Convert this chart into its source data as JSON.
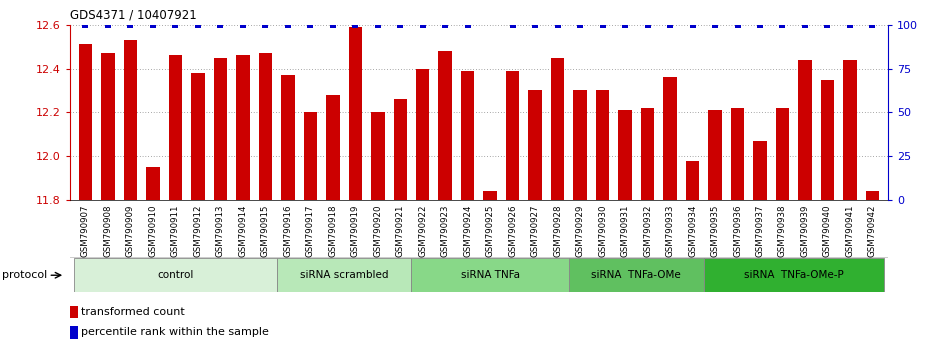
{
  "title": "GDS4371 / 10407921",
  "samples": [
    "GSM790907",
    "GSM790908",
    "GSM790909",
    "GSM790910",
    "GSM790911",
    "GSM790912",
    "GSM790913",
    "GSM790914",
    "GSM790915",
    "GSM790916",
    "GSM790917",
    "GSM790918",
    "GSM790919",
    "GSM790920",
    "GSM790921",
    "GSM790922",
    "GSM790923",
    "GSM790924",
    "GSM790925",
    "GSM790926",
    "GSM790927",
    "GSM790928",
    "GSM790929",
    "GSM790930",
    "GSM790931",
    "GSM790932",
    "GSM790933",
    "GSM790934",
    "GSM790935",
    "GSM790936",
    "GSM790937",
    "GSM790938",
    "GSM790939",
    "GSM790940",
    "GSM790941",
    "GSM790942"
  ],
  "bar_values": [
    12.51,
    12.47,
    12.53,
    11.95,
    12.46,
    12.38,
    12.45,
    12.46,
    12.47,
    12.37,
    12.2,
    12.28,
    12.59,
    12.2,
    12.26,
    12.4,
    12.48,
    12.39,
    11.84,
    12.39,
    12.3,
    12.45,
    12.3,
    12.3,
    12.21,
    12.22,
    12.36,
    11.98,
    12.21,
    12.22,
    12.07,
    12.22,
    12.44,
    12.35,
    12.44,
    11.84
  ],
  "percentile_display": [
    true,
    true,
    true,
    true,
    true,
    true,
    true,
    true,
    true,
    true,
    true,
    true,
    true,
    true,
    true,
    true,
    true,
    true,
    false,
    true,
    true,
    true,
    true,
    true,
    true,
    true,
    true,
    true,
    true,
    true,
    true,
    true,
    true,
    true,
    true,
    true
  ],
  "groups": [
    {
      "label": "control",
      "start": 0,
      "end": 8
    },
    {
      "label": "siRNA scrambled",
      "start": 9,
      "end": 14
    },
    {
      "label": "siRNA TNFa",
      "start": 15,
      "end": 21
    },
    {
      "label": "siRNA  TNFa-OMe",
      "start": 22,
      "end": 27
    },
    {
      "label": "siRNA  TNFa-OMe-P",
      "start": 28,
      "end": 35
    }
  ],
  "group_colors": [
    "#d8f0d8",
    "#b8e8b8",
    "#88d888",
    "#60c060",
    "#30b030"
  ],
  "ylim": [
    11.8,
    12.6
  ],
  "yticks": [
    11.8,
    12.0,
    12.2,
    12.4,
    12.6
  ],
  "right_yticks": [
    0,
    25,
    50,
    75,
    100
  ],
  "bar_color": "#cc0000",
  "percentile_color": "#0000cc",
  "grid_color": "#555555",
  "legend_red_label": "transformed count",
  "legend_blue_label": "percentile rank within the sample",
  "xtick_bg_color": "#cccccc",
  "protocol_text_color": "#000000"
}
